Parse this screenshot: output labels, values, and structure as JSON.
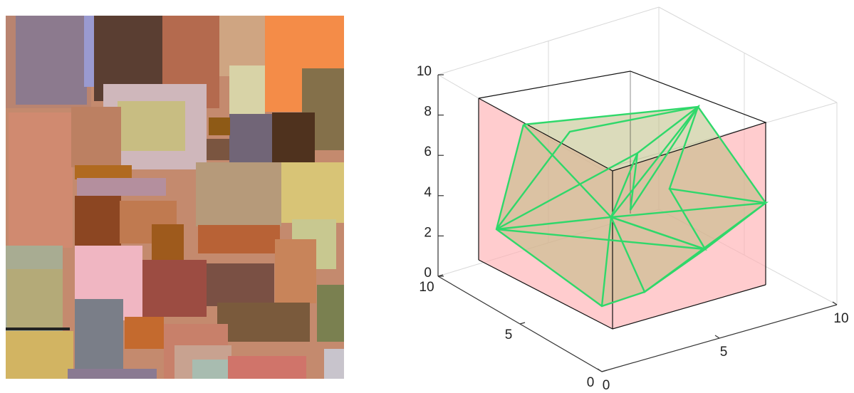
{
  "chart_data": {
    "type": "3d-box",
    "xlim": [
      0,
      10
    ],
    "xticks": [
      0,
      5,
      10
    ],
    "ylim": [
      0,
      10
    ],
    "yticks": [
      0,
      5,
      10
    ],
    "zlim": [
      0,
      10
    ],
    "zticks": [
      0,
      2,
      4,
      6,
      8,
      10
    ]
  }
}
